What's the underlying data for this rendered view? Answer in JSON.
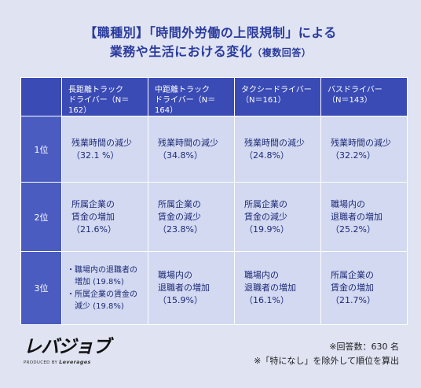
{
  "title": {
    "line1": "【職種別】「時間外労働の上限規制」による",
    "line2": "業務や生活における変化",
    "line2_suffix": "（複数回答）"
  },
  "table": {
    "columns": [
      {
        "header": "長距離トラック\nドライバー（N＝162）"
      },
      {
        "header": "中距離トラック\nドライバー（N＝164）"
      },
      {
        "header": "タクシードライバー\n（N＝161）"
      },
      {
        "header": "バスドライバー\n（N＝143）"
      }
    ],
    "rows": [
      {
        "rank": "1位",
        "cells": [
          "残業時間の減少\n（32.1 %）",
          "残業時間の減少\n（34.8%）",
          "残業時間の減少\n（24.8%）",
          "残業時間の減少\n（32.2%）"
        ]
      },
      {
        "rank": "2位",
        "cells": [
          "所属企業の\n賃金の増加\n（21.6%）",
          "所属企業の\n賃金の減少\n（23.8%）",
          "所属企業の\n賃金の減少\n（19.9%）",
          "職場内の\n退職者の増加\n（25.2%）"
        ]
      },
      {
        "rank": "3位",
        "first_cell_items": [
          "・職場内の退職者の\n　増加 (19.8%)",
          "・所属企業の賃金の\n　減少 (19.8%)"
        ],
        "cells": [
          "職場内の\n退職者の増加\n（15.9%）",
          "職場内の\n退職者の増加\n（16.1%）",
          "所属企業の\n賃金の増加\n（21.7%）"
        ]
      }
    ]
  },
  "logo": {
    "mark": "レバジョブ",
    "produced_by": "PRODUCED BY",
    "company": "Leverages"
  },
  "notes": {
    "respondents": "※回答数：630 名",
    "exclusion": "※「特になし」を除外して順位を算出"
  },
  "colors": {
    "background": "#dfe3f2",
    "header": "#3a4bb5",
    "cell": "#d2d9f1",
    "text": "#1e2a78"
  }
}
